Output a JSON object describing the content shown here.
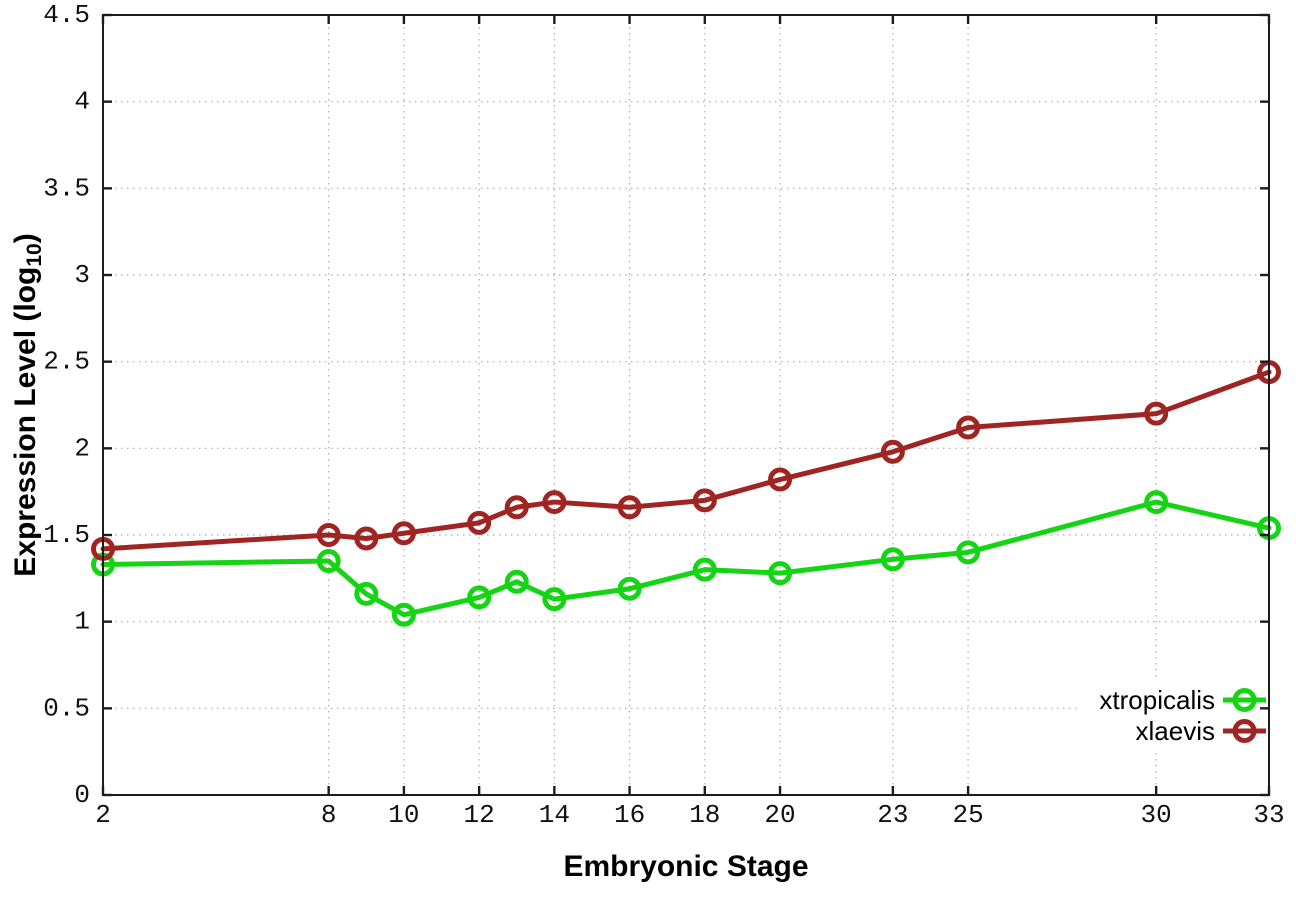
{
  "chart_data": {
    "type": "line",
    "title": "",
    "xlabel": "Embryonic Stage",
    "ylabel_prefix": "Expression Level (log",
    "ylabel_sub": "10",
    "ylabel_suffix": ")",
    "x": [
      2,
      8,
      9,
      10,
      12,
      13,
      14,
      16,
      18,
      20,
      23,
      25,
      30,
      33
    ],
    "series": [
      {
        "name": "xtropicalis",
        "color": "#14d414",
        "values": [
          1.33,
          1.35,
          1.16,
          1.04,
          1.14,
          1.23,
          1.13,
          1.19,
          1.3,
          1.28,
          1.36,
          1.4,
          1.69,
          1.54
        ]
      },
      {
        "name": "xlaevis",
        "color": "#a02522",
        "values": [
          1.42,
          1.5,
          1.48,
          1.51,
          1.57,
          1.66,
          1.69,
          1.66,
          1.7,
          1.82,
          1.98,
          2.12,
          2.2,
          2.44
        ]
      }
    ],
    "x_ticks": [
      2,
      8,
      10,
      12,
      14,
      16,
      18,
      20,
      23,
      25,
      30,
      33
    ],
    "y_ticks": [
      0,
      0.5,
      1,
      1.5,
      2,
      2.5,
      3,
      3.5,
      4,
      4.5
    ],
    "xlim": [
      2,
      33
    ],
    "ylim": [
      0,
      4.5
    ],
    "grid": true,
    "legend_position": "bottom-right"
  },
  "style": {
    "grid_color": "#aaaaaa",
    "axis_color": "#1c1c1c",
    "tick_label_color": "#111111",
    "background": "#ffffff"
  }
}
